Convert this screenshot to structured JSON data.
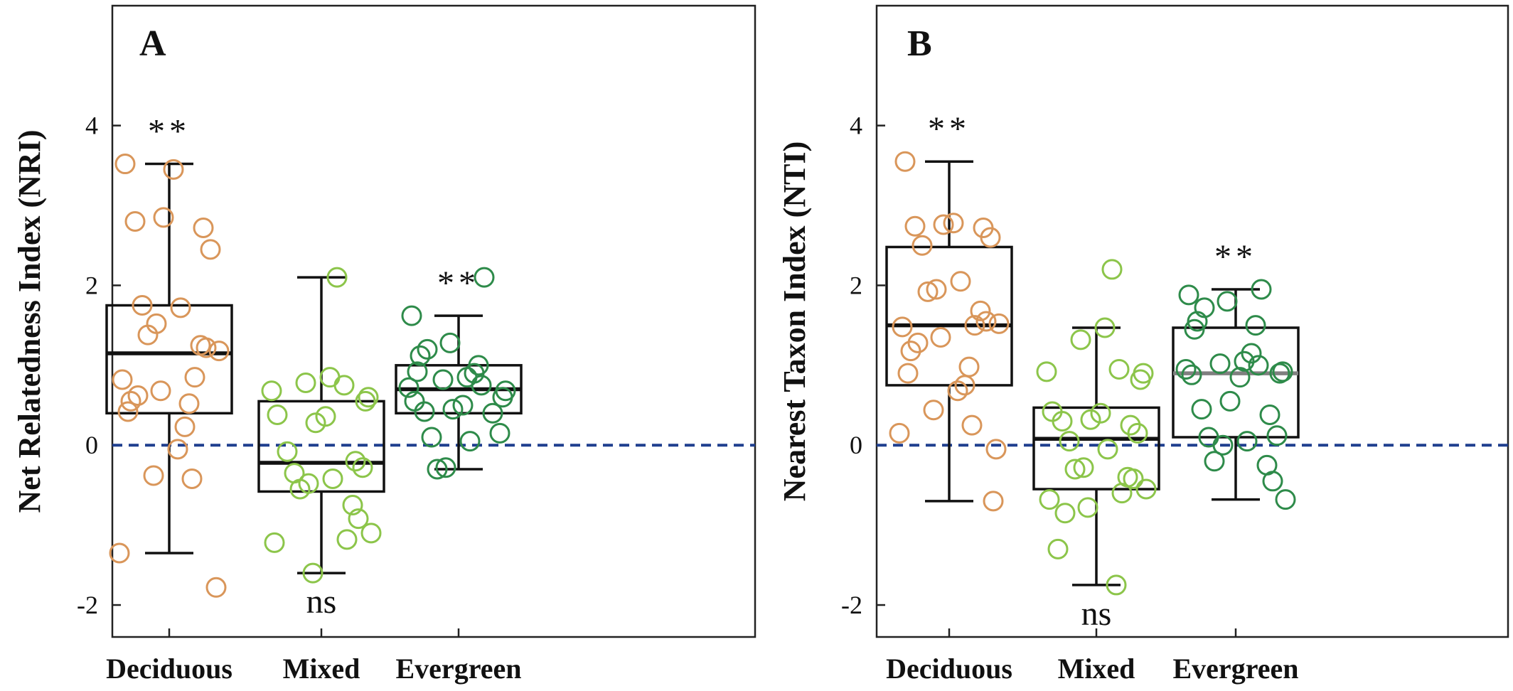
{
  "chart_data": [
    {
      "type": "box",
      "panel_label": "A",
      "ylabel": "Net Relatedness Index (NRI)",
      "ylim": [
        -2.4,
        5.5
      ],
      "yticks": [
        4,
        2,
        0,
        -2
      ],
      "ytick_labels": [
        "4",
        "2",
        "0",
        "-2"
      ],
      "categories": [
        "Deciduous",
        "Mixed",
        "Evergreen"
      ],
      "reference_line": 0,
      "groups": [
        {
          "name": "Deciduous",
          "color": "#d9965a",
          "whisker_low": -1.35,
          "q1": 0.4,
          "median": 1.15,
          "q3": 1.75,
          "whisker_high": 3.52,
          "median_color": "#111111",
          "significance": "**",
          "significance_color": "#e0342f",
          "points": [
            3.52,
            3.45,
            2.85,
            2.8,
            2.72,
            2.45,
            1.75,
            1.72,
            1.52,
            1.38,
            1.25,
            1.22,
            1.18,
            0.85,
            0.82,
            0.68,
            0.62,
            0.55,
            0.52,
            0.42,
            0.23,
            -0.05,
            -0.38,
            -0.42,
            -1.35,
            -1.78
          ]
        },
        {
          "name": "Mixed",
          "color": "#8cc54a",
          "whisker_low": -1.6,
          "q1": -0.58,
          "median": -0.22,
          "q3": 0.55,
          "whisker_high": 2.1,
          "median_color": "#111111",
          "significance": "ns",
          "significance_color": "#111111",
          "points": [
            2.1,
            0.85,
            0.78,
            0.75,
            0.68,
            0.6,
            0.55,
            0.38,
            0.36,
            0.28,
            -0.08,
            -0.2,
            -0.28,
            -0.35,
            -0.42,
            -0.48,
            -0.55,
            -0.75,
            -0.92,
            -1.1,
            -1.18,
            -1.22,
            -1.6
          ]
        },
        {
          "name": "Evergreen",
          "color": "#2e8b4a",
          "whisker_low": -0.3,
          "q1": 0.4,
          "median": 0.7,
          "q3": 1.0,
          "whisker_high": 1.62,
          "median_color": "#111111",
          "significance": "**",
          "significance_color": "#e0342f",
          "points": [
            2.1,
            1.62,
            1.28,
            1.2,
            1.12,
            1.0,
            0.92,
            0.9,
            0.85,
            0.82,
            0.75,
            0.72,
            0.68,
            0.6,
            0.55,
            0.5,
            0.45,
            0.42,
            0.4,
            0.15,
            0.1,
            0.05,
            -0.28,
            -0.3
          ]
        }
      ]
    },
    {
      "type": "box",
      "panel_label": "B",
      "ylabel": "Nearest Taxon Index (NTI)",
      "ylim": [
        -2.4,
        5.5
      ],
      "yticks": [
        4,
        2,
        0,
        -2
      ],
      "ytick_labels": [
        "4",
        "2",
        "0",
        "-2"
      ],
      "categories": [
        "Deciduous",
        "Mixed",
        "Evergreen"
      ],
      "reference_line": 0,
      "groups": [
        {
          "name": "Deciduous",
          "color": "#d9965a",
          "whisker_low": -0.7,
          "q1": 0.75,
          "median": 1.5,
          "q3": 2.48,
          "whisker_high": 3.55,
          "median_color": "#111111",
          "significance": "**",
          "significance_color": "#e0342f",
          "points": [
            3.55,
            2.78,
            2.76,
            2.74,
            2.72,
            2.6,
            2.5,
            2.05,
            1.95,
            1.92,
            1.68,
            1.55,
            1.52,
            1.5,
            1.48,
            1.35,
            1.28,
            1.18,
            0.98,
            0.9,
            0.75,
            0.68,
            0.44,
            0.25,
            0.15,
            -0.05,
            -0.7
          ]
        },
        {
          "name": "Mixed",
          "color": "#8cc54a",
          "whisker_low": -1.75,
          "q1": -0.55,
          "median": 0.08,
          "q3": 0.47,
          "whisker_high": 1.47,
          "median_color": "#111111",
          "significance": "ns",
          "significance_color": "#111111",
          "points": [
            2.2,
            1.47,
            1.32,
            0.95,
            0.92,
            0.9,
            0.82,
            0.42,
            0.4,
            0.32,
            0.3,
            0.25,
            0.15,
            0.05,
            -0.05,
            -0.28,
            -0.3,
            -0.4,
            -0.42,
            -0.55,
            -0.6,
            -0.68,
            -0.78,
            -0.85,
            -1.3,
            -1.75
          ]
        },
        {
          "name": "Evergreen",
          "color": "#2e8b4a",
          "whisker_low": -0.68,
          "q1": 0.1,
          "median": 0.9,
          "q3": 1.47,
          "whisker_high": 1.95,
          "median_color": "#808080",
          "significance": "**",
          "significance_color": "#e0342f",
          "points": [
            1.95,
            1.88,
            1.8,
            1.72,
            1.55,
            1.5,
            1.45,
            1.15,
            1.05,
            1.02,
            1.0,
            0.95,
            0.92,
            0.9,
            0.88,
            0.85,
            0.55,
            0.45,
            0.38,
            0.12,
            0.1,
            0.05,
            0.0,
            -0.2,
            -0.25,
            -0.45,
            -0.68
          ]
        }
      ]
    }
  ]
}
